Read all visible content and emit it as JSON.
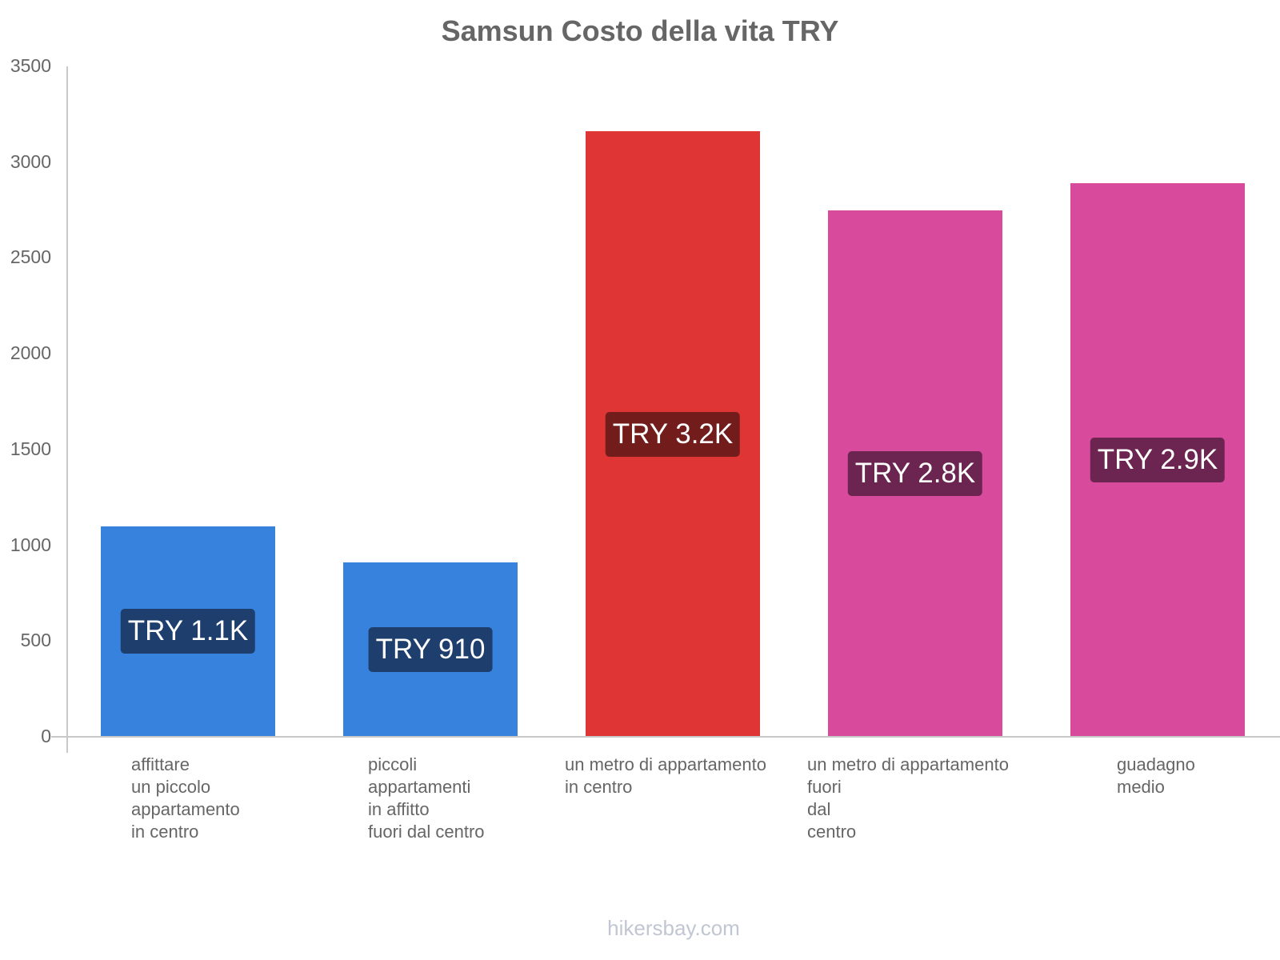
{
  "chart_data": {
    "type": "bar",
    "title": "Samsun Costo della vita TRY",
    "xlabel": "",
    "ylabel": "",
    "ylim": [
      0,
      3500
    ],
    "yticks": [
      0,
      500,
      1000,
      1500,
      2000,
      2500,
      3000,
      3500
    ],
    "grid": false,
    "categories": [
      "affittare\nun piccolo\nappartamento\nin centro",
      "piccoli\nappartamenti\nin affitto\nfuori dal centro",
      "un metro di appartamento\nin centro",
      "un metro di appartamento\nfuori\ndal\ncentro",
      "guadagno\nmedio"
    ],
    "values": [
      1100,
      910,
      3160,
      2750,
      2890
    ],
    "value_labels": [
      "TRY 1.1K",
      "TRY 910",
      "TRY 3.2K",
      "TRY 2.8K",
      "TRY 2.9K"
    ],
    "colors": [
      "#3682dd",
      "#3682dd",
      "#e03535",
      "#d84a9b",
      "#d84a9b"
    ],
    "label_bg_colors": [
      "#1e3f6e",
      "#1e3f6e",
      "#721c1c",
      "#6c2450",
      "#6c2450"
    ]
  },
  "watermark": "hikersbay.com"
}
